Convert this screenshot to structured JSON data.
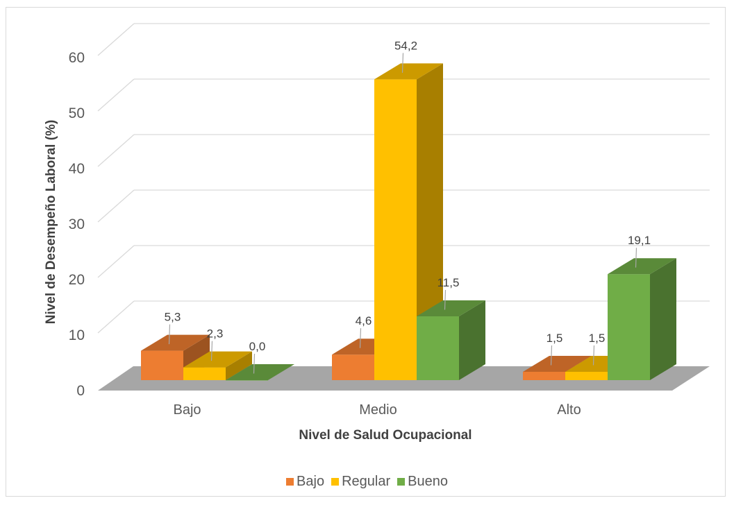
{
  "chart_data": {
    "type": "bar",
    "variant": "3d-clustered-column",
    "title": "",
    "xlabel": "Nivel de Salud Ocupacional",
    "ylabel": "Nivel de Desempeño Laboral (%)",
    "categories": [
      "Bajo",
      "Medio",
      "Alto"
    ],
    "series": [
      {
        "name": "Bajo",
        "values": [
          5.3,
          4.6,
          1.5
        ],
        "labels": [
          "5,3",
          "4,6",
          "1,5"
        ],
        "color": "#ED7D31"
      },
      {
        "name": "Regular",
        "values": [
          2.3,
          54.2,
          1.5
        ],
        "labels": [
          "2,3",
          "54,2",
          "1,5"
        ],
        "color": "#FFC000"
      },
      {
        "name": "Bueno",
        "values": [
          0.0,
          11.5,
          19.1
        ],
        "labels": [
          "0,0",
          "11,5",
          "19,1"
        ],
        "color": "#70AD47"
      }
    ],
    "ylim": [
      0,
      60
    ],
    "yticks": [
      "0",
      "10",
      "20",
      "30",
      "40",
      "50",
      "60"
    ],
    "grid": true,
    "legend_position": "bottom",
    "colors": {
      "floor": "#A6A6A6",
      "grid": "#D9D9D9",
      "text": "#595959"
    }
  }
}
